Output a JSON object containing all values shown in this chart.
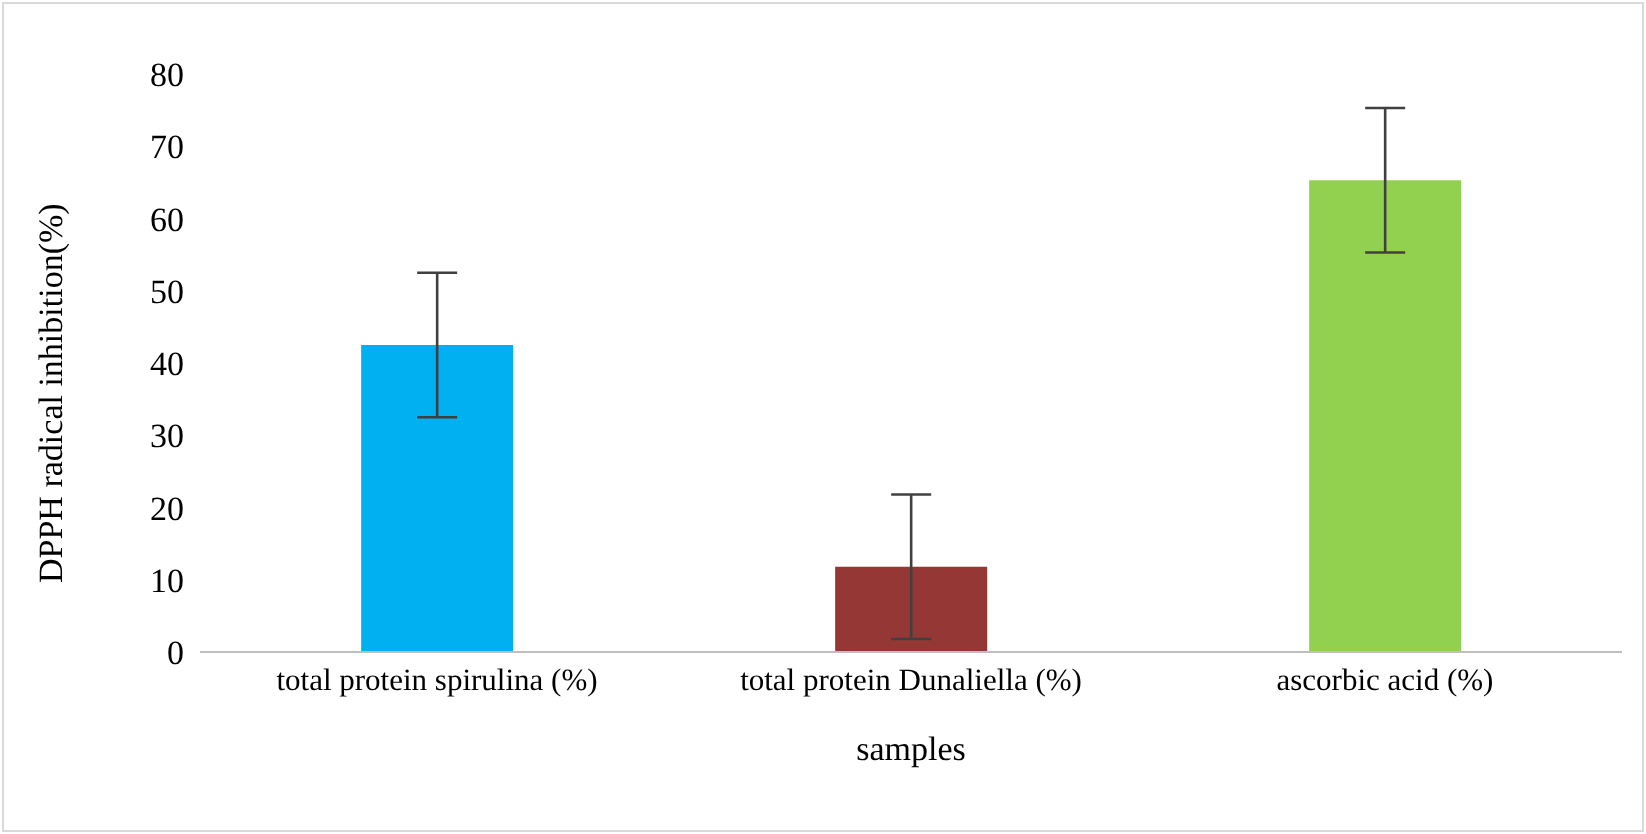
{
  "chart_data": {
    "type": "bar",
    "xlabel": "samples",
    "ylabel": "DPPH radical inhibition(%)",
    "categories": [
      "total protein spirulina (%)",
      "total protein Dunaliella (%)",
      "ascorbic acid (%)"
    ],
    "values": [
      42.5,
      11.8,
      65.3
    ],
    "colors": [
      "#00b0f0",
      "#953735",
      "#92d050"
    ],
    "errors": [
      10,
      10,
      10
    ],
    "ylim": [
      0,
      80
    ],
    "yticks": [
      0,
      10,
      20,
      30,
      40,
      50,
      60,
      70,
      80
    ],
    "grid": false,
    "legend": false
  }
}
